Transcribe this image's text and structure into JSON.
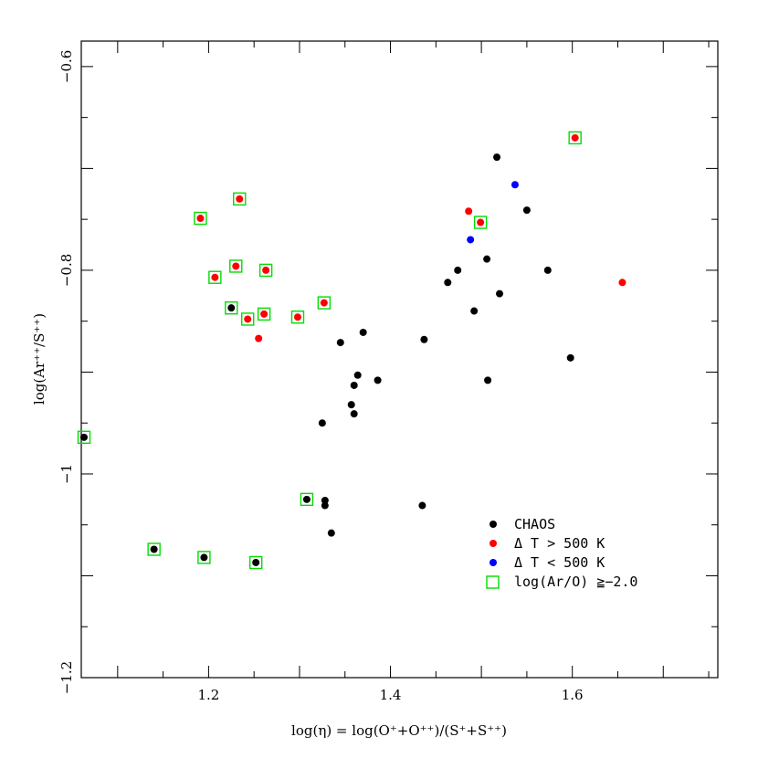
{
  "chart_data": {
    "type": "scatter",
    "xlabel": "log(η) = log(O⁺+O⁺⁺)/(S⁺+S⁺⁺)",
    "ylabel": "log(Ar⁺⁺/S⁺⁺)",
    "xlim": [
      1.06,
      1.76
    ],
    "ylim": [
      -1.2,
      -0.575
    ],
    "xticks": [
      1.2,
      1.4,
      1.6
    ],
    "yticks": [
      -1.2,
      -1,
      -0.8,
      -0.6
    ],
    "xtick_labels": [
      "1.2",
      "1.4",
      "1.6"
    ],
    "ytick_labels": [
      "−1.2",
      "−1",
      "−0.8",
      "−0.6"
    ],
    "grid": false,
    "legend_position": "lower-right",
    "series": [
      {
        "name": "CHAOS",
        "color": "#000000",
        "marker": "filled-circle",
        "points": [
          {
            "x": 1.063,
            "y": -0.964,
            "flag": true
          },
          {
            "x": 1.14,
            "y": -1.074,
            "flag": true
          },
          {
            "x": 1.195,
            "y": -1.082,
            "flag": true
          },
          {
            "x": 1.225,
            "y": -0.837,
            "flag": true
          },
          {
            "x": 1.252,
            "y": -1.087,
            "flag": true
          },
          {
            "x": 1.308,
            "y": -1.025,
            "flag": true
          },
          {
            "x": 1.325,
            "y": -0.95,
            "flag": false
          },
          {
            "x": 1.328,
            "y": -1.026,
            "flag": false
          },
          {
            "x": 1.328,
            "y": -1.031,
            "flag": false
          },
          {
            "x": 1.335,
            "y": -1.058,
            "flag": false
          },
          {
            "x": 1.345,
            "y": -0.871,
            "flag": false
          },
          {
            "x": 1.357,
            "y": -0.932,
            "flag": false
          },
          {
            "x": 1.36,
            "y": -0.941,
            "flag": false
          },
          {
            "x": 1.36,
            "y": -0.913,
            "flag": false
          },
          {
            "x": 1.364,
            "y": -0.903,
            "flag": false
          },
          {
            "x": 1.37,
            "y": -0.861,
            "flag": false
          },
          {
            "x": 1.386,
            "y": -0.908,
            "flag": false
          },
          {
            "x": 1.437,
            "y": -0.868,
            "flag": false
          },
          {
            "x": 1.435,
            "y": -1.031,
            "flag": false
          },
          {
            "x": 1.463,
            "y": -0.812,
            "flag": false
          },
          {
            "x": 1.474,
            "y": -0.8,
            "flag": false
          },
          {
            "x": 1.492,
            "y": -0.84,
            "flag": false
          },
          {
            "x": 1.506,
            "y": -0.789,
            "flag": false
          },
          {
            "x": 1.507,
            "y": -0.908,
            "flag": false
          },
          {
            "x": 1.517,
            "y": -0.689,
            "flag": false
          },
          {
            "x": 1.52,
            "y": -0.823,
            "flag": false
          },
          {
            "x": 1.55,
            "y": -0.741,
            "flag": false
          },
          {
            "x": 1.573,
            "y": -0.8,
            "flag": false
          },
          {
            "x": 1.598,
            "y": -0.886,
            "flag": false
          }
        ]
      },
      {
        "name": "Δ T > 500 K",
        "color": "#ff0000",
        "marker": "filled-circle",
        "points": [
          {
            "x": 1.191,
            "y": -0.749,
            "flag": true
          },
          {
            "x": 1.207,
            "y": -0.807,
            "flag": true
          },
          {
            "x": 1.23,
            "y": -0.796,
            "flag": true
          },
          {
            "x": 1.234,
            "y": -0.73,
            "flag": true
          },
          {
            "x": 1.243,
            "y": -0.848,
            "flag": true
          },
          {
            "x": 1.255,
            "y": -0.867,
            "flag": false
          },
          {
            "x": 1.261,
            "y": -0.843,
            "flag": true
          },
          {
            "x": 1.263,
            "y": -0.8,
            "flag": true
          },
          {
            "x": 1.298,
            "y": -0.846,
            "flag": true
          },
          {
            "x": 1.327,
            "y": -0.832,
            "flag": true
          },
          {
            "x": 1.486,
            "y": -0.742,
            "flag": false
          },
          {
            "x": 1.499,
            "y": -0.753,
            "flag": true
          },
          {
            "x": 1.603,
            "y": -0.67,
            "flag": true
          },
          {
            "x": 1.655,
            "y": -0.812,
            "flag": false
          }
        ]
      },
      {
        "name": "Δ T < 500 K",
        "color": "#0000ff",
        "marker": "filled-circle",
        "points": [
          {
            "x": 1.488,
            "y": -0.77,
            "flag": false
          },
          {
            "x": 1.537,
            "y": -0.716,
            "flag": false
          }
        ]
      },
      {
        "name": "log(Ar/O) ≧−2.0",
        "color": "#00dd00",
        "marker": "open-square",
        "points": []
      }
    ]
  },
  "legend": {
    "items": [
      {
        "label": "CHAOS",
        "color": "#000000",
        "marker": "dot"
      },
      {
        "label": "Δ T > 500 K",
        "color": "#ff0000",
        "marker": "dot"
      },
      {
        "label": "Δ T < 500 K",
        "color": "#0000ff",
        "marker": "dot"
      },
      {
        "label": "log(Ar/O) ≧−2.0",
        "color": "#00dd00",
        "marker": "square"
      }
    ]
  }
}
